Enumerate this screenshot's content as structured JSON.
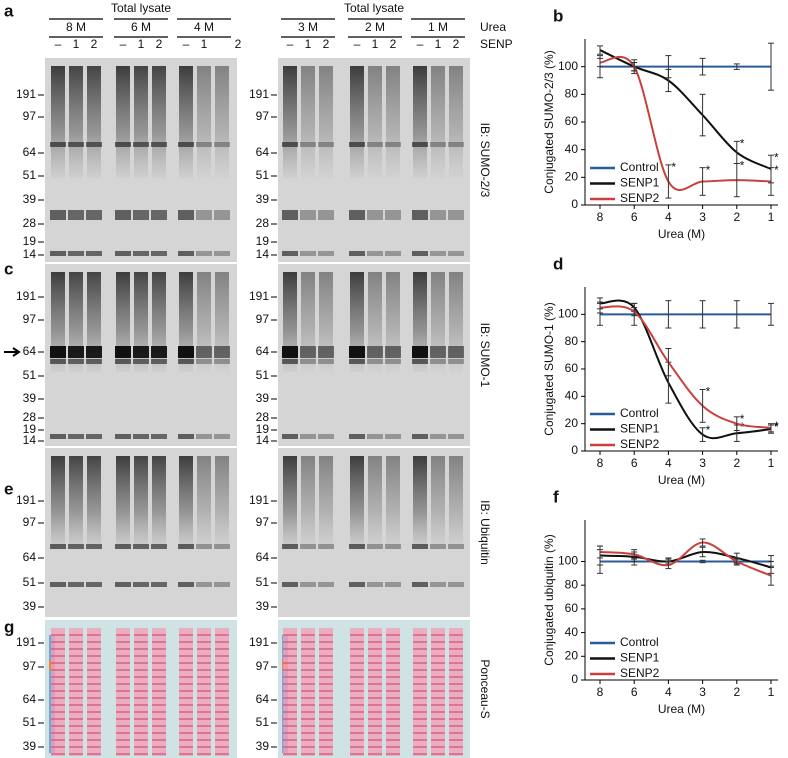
{
  "blots": {
    "headers": [
      "Total lysate",
      "Total lysate"
    ],
    "row_labels": [
      "Urea",
      "SENP"
    ],
    "groups": [
      {
        "urea": "8 M",
        "lanes": [
          "–",
          "1",
          "2"
        ]
      },
      {
        "urea": "6 M",
        "lanes": [
          "–",
          "1",
          "2"
        ]
      },
      {
        "urea": "4 M",
        "lanes": [
          "–",
          "1",
          "2"
        ]
      },
      {
        "urea": "3 M",
        "lanes": [
          "–",
          "1",
          "2"
        ]
      },
      {
        "urea": "2 M",
        "lanes": [
          "–",
          "1",
          "2"
        ]
      },
      {
        "urea": "1 M",
        "lanes": [
          "–",
          "1",
          "2"
        ]
      }
    ],
    "panels": [
      {
        "letter": "a",
        "label": "IB: SUMO-2/3",
        "markers": [
          191,
          97,
          64,
          51,
          39,
          28,
          19,
          14
        ]
      },
      {
        "letter": "c",
        "label": "IB: SUMO-1",
        "markers": [
          191,
          97,
          64,
          51,
          39,
          28,
          19,
          14
        ]
      },
      {
        "letter": "e",
        "label": "IB: Ubiquitin",
        "markers": [
          191,
          97,
          64,
          51,
          39
        ]
      },
      {
        "letter": "g",
        "label": "Ponceau-S",
        "markers": [
          191,
          97,
          64,
          51,
          39
        ]
      }
    ]
  },
  "chart_data": [
    {
      "type": "line",
      "panel": "b",
      "ylabel": "Conjugated SUMO-2/3 (%)",
      "xlabel": "Urea (M)",
      "categories": [
        "8",
        "6",
        "4",
        "3",
        "2",
        "1"
      ],
      "ylim": [
        0,
        120
      ],
      "yticks": [
        0,
        20,
        40,
        60,
        80,
        100
      ],
      "legend": "lower left",
      "series": [
        {
          "name": "Control",
          "color": "#2b5a9b",
          "smooth": false,
          "values": [
            100,
            100,
            100,
            100,
            100,
            100
          ],
          "errors": [
            8,
            5,
            8,
            6,
            2,
            17
          ]
        },
        {
          "name": "SENP1",
          "color": "#111111",
          "smooth": true,
          "values": [
            112,
            100,
            90,
            65,
            38,
            26
          ],
          "errors": [
            3,
            3,
            8,
            15,
            8,
            10
          ],
          "stars": [
            null,
            null,
            null,
            null,
            "*",
            "*"
          ]
        },
        {
          "name": "SENP2",
          "color": "#c9403c",
          "smooth": true,
          "values": [
            103,
            100,
            17,
            17,
            18,
            17
          ],
          "errors": [
            3,
            3,
            12,
            10,
            12,
            10
          ],
          "stars": [
            null,
            null,
            "*",
            "*",
            "*",
            "*"
          ]
        }
      ]
    },
    {
      "type": "line",
      "panel": "d",
      "ylabel": "Conjugated SUMO-1 (%)",
      "xlabel": "Urea (M)",
      "categories": [
        "8",
        "6",
        "4",
        "3",
        "2",
        "1"
      ],
      "ylim": [
        0,
        120
      ],
      "yticks": [
        0,
        20,
        40,
        60,
        80,
        100
      ],
      "legend": "lower left",
      "series": [
        {
          "name": "Control",
          "color": "#2b5a9b",
          "smooth": false,
          "values": [
            100,
            100,
            100,
            100,
            100,
            100
          ],
          "errors": [
            8,
            8,
            10,
            10,
            10,
            8
          ]
        },
        {
          "name": "SENP1",
          "color": "#111111",
          "smooth": true,
          "values": [
            108,
            105,
            50,
            12,
            13,
            16
          ],
          "errors": [
            4,
            3,
            15,
            5,
            6,
            3
          ],
          "stars": [
            null,
            null,
            null,
            "*",
            "*",
            "*"
          ]
        },
        {
          "name": "SENP2",
          "color": "#c9403c",
          "smooth": true,
          "values": [
            105,
            102,
            65,
            33,
            20,
            17
          ],
          "errors": [
            4,
            3,
            10,
            12,
            5,
            3
          ],
          "stars": [
            null,
            null,
            null,
            "*",
            "*",
            "*"
          ]
        }
      ]
    },
    {
      "type": "line",
      "panel": "f",
      "ylabel": "Conjugated ubiquitin (%)",
      "xlabel": "Urea (M)",
      "categories": [
        "8",
        "6",
        "4",
        "3",
        "2",
        "1"
      ],
      "ylim": [
        0,
        135
      ],
      "yticks": [
        0,
        20,
        40,
        60,
        80,
        100
      ],
      "legend": "lower left",
      "series": [
        {
          "name": "Control",
          "color": "#2b5a9b",
          "smooth": false,
          "values": [
            100,
            100,
            100,
            100,
            100,
            100
          ],
          "errors": [
            10,
            3,
            2,
            1,
            2,
            5
          ]
        },
        {
          "name": "SENP1",
          "color": "#111111",
          "smooth": true,
          "values": [
            105,
            104,
            100,
            108,
            103,
            95
          ],
          "errors": [
            8,
            4,
            3,
            4,
            4,
            5
          ]
        },
        {
          "name": "SENP2",
          "color": "#c9403c",
          "smooth": true,
          "values": [
            108,
            106,
            97,
            116,
            100,
            88
          ],
          "errors": [
            5,
            4,
            3,
            3,
            3,
            8
          ]
        }
      ]
    }
  ]
}
